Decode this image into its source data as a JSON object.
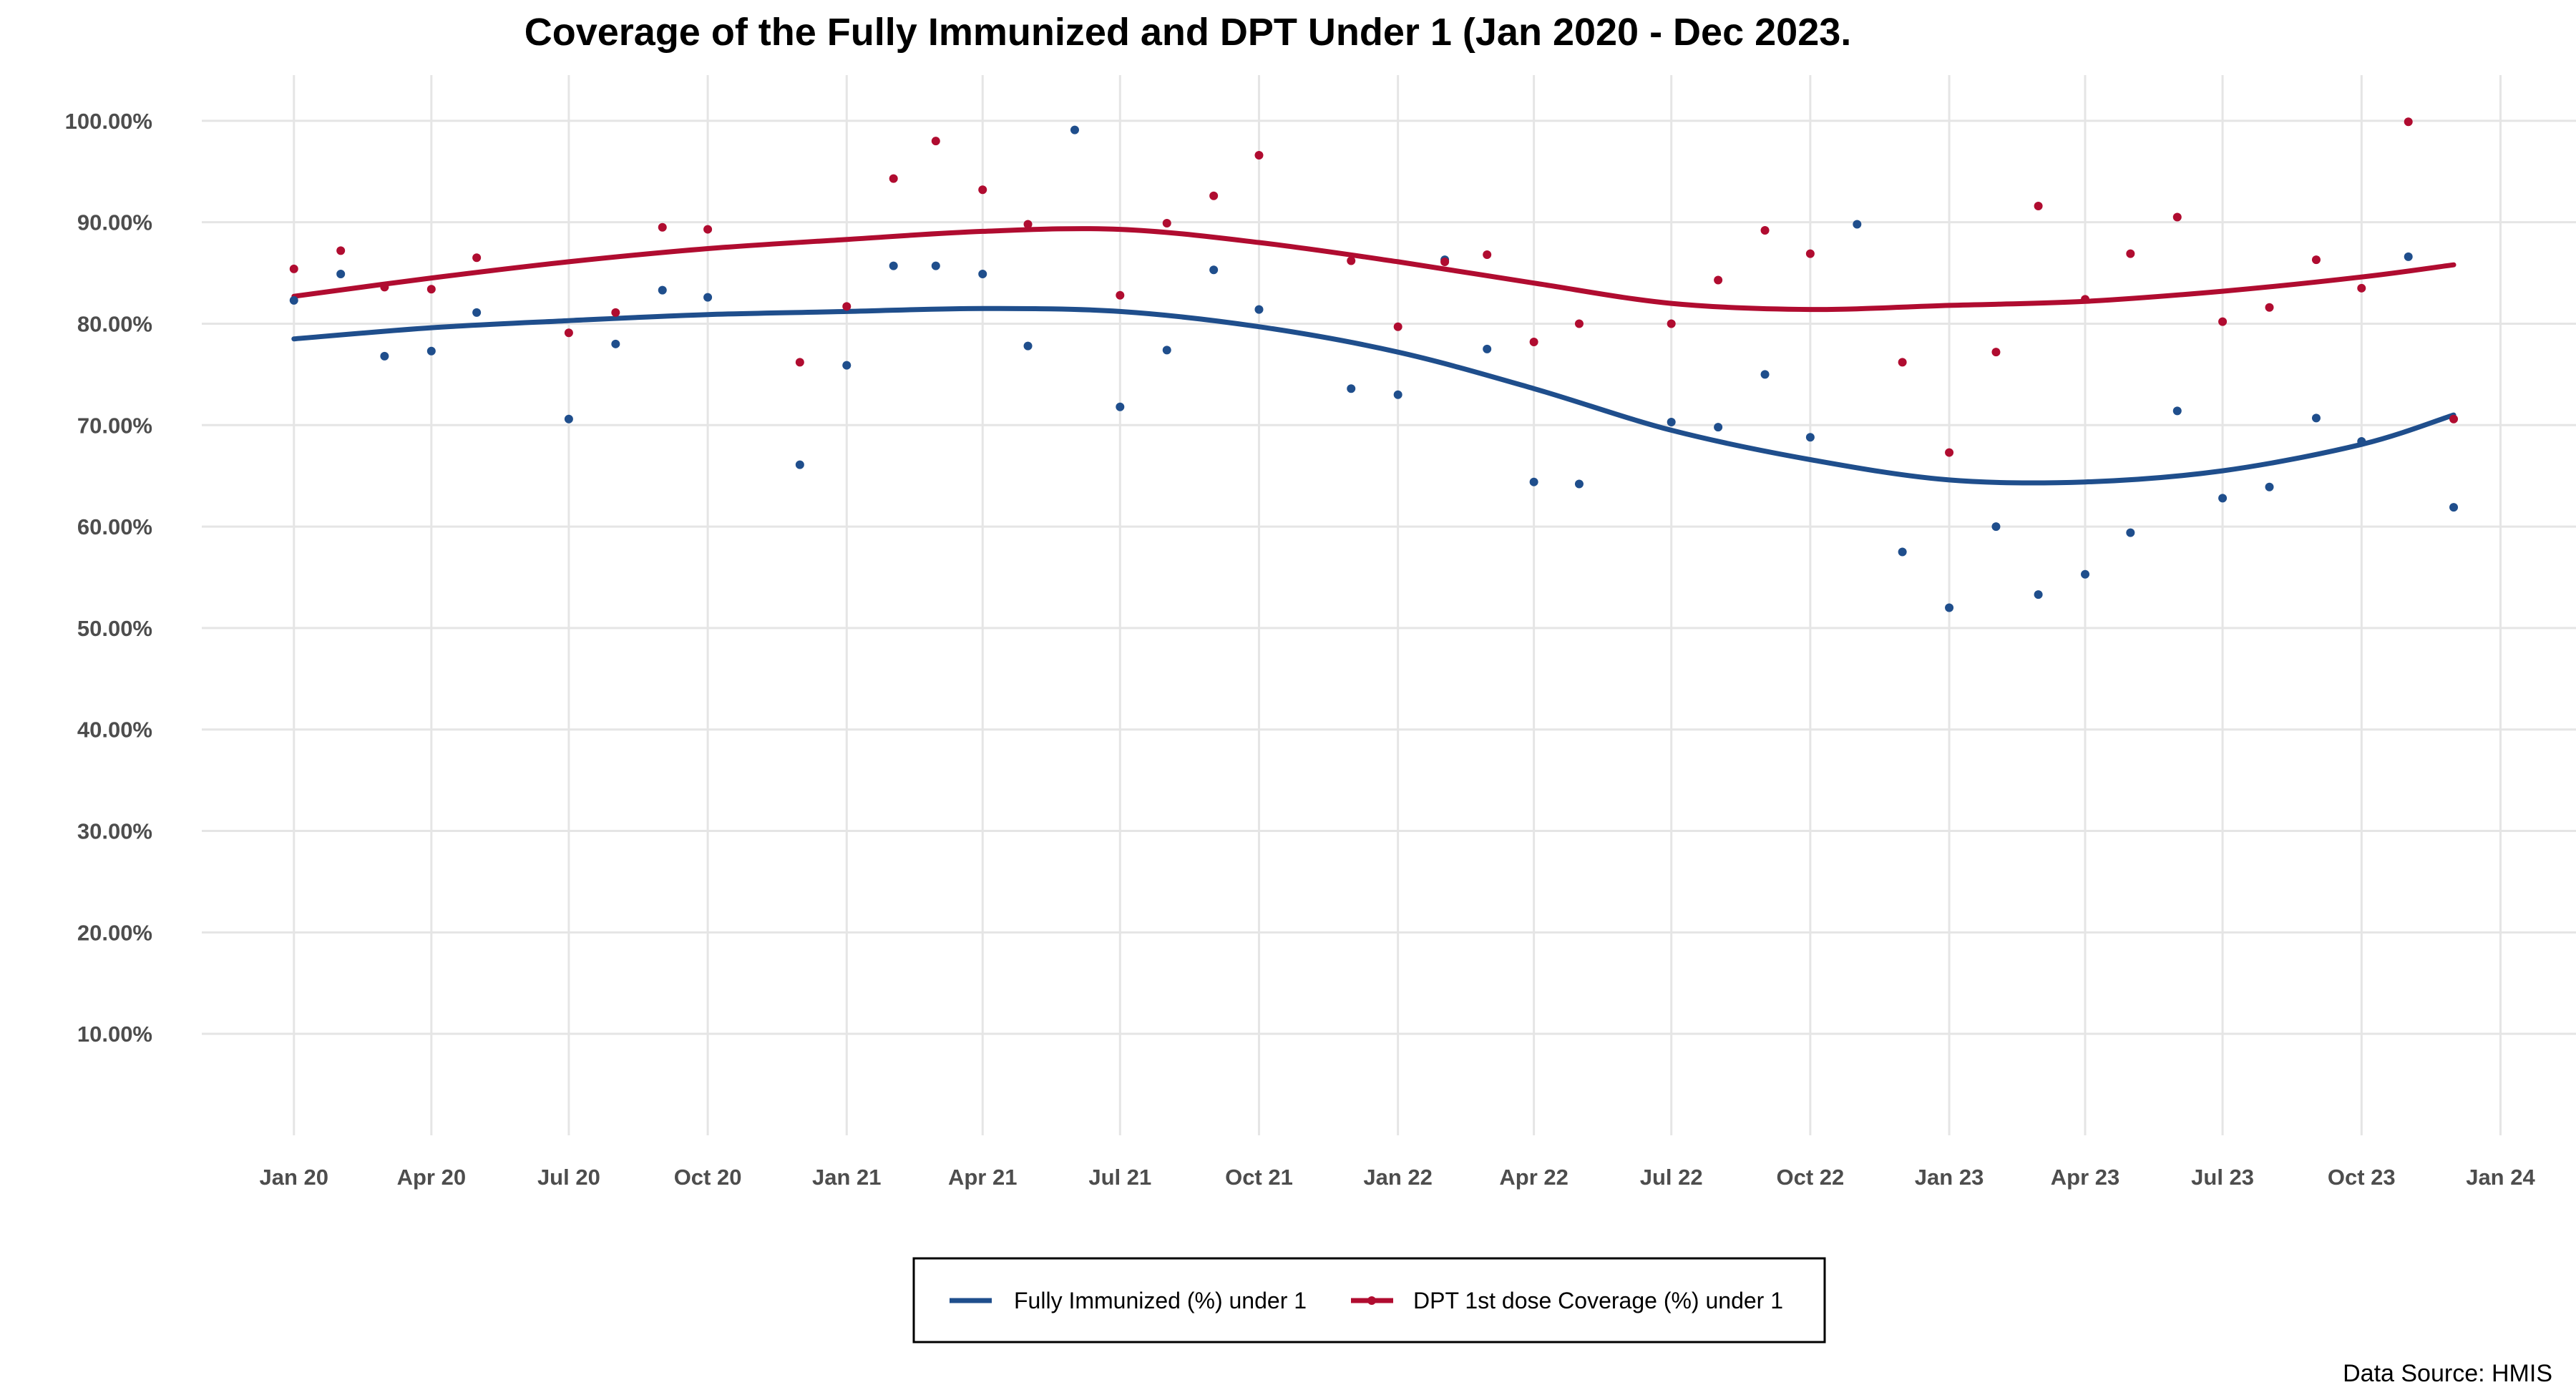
{
  "chart_data": {
    "type": "scatter",
    "title": "Coverage of the Fully Immunized and DPT Under 1 (Jan 2020 - Dec 2023.",
    "caption": "Data Source: HMIS",
    "xlabel": "",
    "ylabel": "",
    "x_range": [
      "2019-11-01",
      "2024-02-20"
    ],
    "ylim": [
      0,
      104.5
    ],
    "y_ticks": [
      10,
      20,
      30,
      40,
      50,
      60,
      70,
      80,
      90,
      100
    ],
    "y_tick_labels": [
      "10.00%",
      "20.00%",
      "30.00%",
      "40.00%",
      "50.00%",
      "60.00%",
      "70.00%",
      "80.00%",
      "90.00%",
      "100.00%"
    ],
    "x_ticks": [
      "2020-01-01",
      "2020-04-01",
      "2020-07-01",
      "2020-10-01",
      "2021-01-01",
      "2021-04-01",
      "2021-07-01",
      "2021-10-01",
      "2022-01-01",
      "2022-04-01",
      "2022-07-01",
      "2022-10-01",
      "2023-01-01",
      "2023-04-01",
      "2023-07-01",
      "2023-10-01",
      "2024-01-01"
    ],
    "x_tick_labels": [
      "Jan 20",
      "Apr 20",
      "Jul 20",
      "Oct 20",
      "Jan 21",
      "Apr 21",
      "Jul 21",
      "Oct 21",
      "Jan 22",
      "Apr 22",
      "Jul 22",
      "Oct 22",
      "Jan 23",
      "Apr 23",
      "Jul 23",
      "Oct 23",
      "Jan 24"
    ],
    "grid": true,
    "legend_position": "bottom",
    "dates": [
      "2020-01-01",
      "2020-02-01",
      "2020-03-01",
      "2020-04-01",
      "2020-05-01",
      "2020-06-01",
      "2020-07-01",
      "2020-08-01",
      "2020-09-01",
      "2020-10-01",
      "2020-11-01",
      "2020-12-01",
      "2021-01-01",
      "2021-02-01",
      "2021-03-01",
      "2021-04-01",
      "2021-05-01",
      "2021-06-01",
      "2021-07-01",
      "2021-08-01",
      "2021-09-01",
      "2021-10-01",
      "2021-11-01",
      "2021-12-01",
      "2022-01-01",
      "2022-02-01",
      "2022-03-01",
      "2022-04-01",
      "2022-05-01",
      "2022-06-01",
      "2022-07-01",
      "2022-08-01",
      "2022-09-01",
      "2022-10-01",
      "2022-11-01",
      "2022-12-01",
      "2023-01-01",
      "2023-02-01",
      "2023-03-01",
      "2023-04-01",
      "2023-05-01",
      "2023-06-01",
      "2023-07-01",
      "2023-08-01",
      "2023-09-01",
      "2023-10-01",
      "2023-11-01",
      "2023-12-01"
    ],
    "series": [
      {
        "name": "Fully Immunized (%) under 1",
        "color": "#1F4E8C",
        "values": [
          82.3,
          84.9,
          76.8,
          77.3,
          81.1,
          null,
          70.6,
          78.0,
          83.3,
          82.6,
          null,
          66.1,
          75.9,
          85.7,
          85.7,
          84.9,
          77.8,
          99.1,
          71.8,
          77.4,
          85.3,
          81.4,
          null,
          73.6,
          73.0,
          86.3,
          77.5,
          64.4,
          64.2,
          null,
          70.3,
          69.8,
          75.0,
          68.8,
          89.8,
          57.5,
          52.0,
          60.0,
          53.3,
          55.3,
          59.4,
          71.4,
          62.8,
          63.9,
          70.7,
          68.4,
          86.6,
          61.9
        ],
        "trend": [
          [
            "2020-01-01",
            78.5
          ],
          [
            "2020-04-01",
            79.6
          ],
          [
            "2020-07-01",
            80.3
          ],
          [
            "2020-10-01",
            80.9
          ],
          [
            "2021-01-01",
            81.2
          ],
          [
            "2021-04-01",
            81.5
          ],
          [
            "2021-07-01",
            81.2
          ],
          [
            "2021-10-01",
            79.7
          ],
          [
            "2022-01-01",
            77.2
          ],
          [
            "2022-04-01",
            73.6
          ],
          [
            "2022-07-01",
            69.5
          ],
          [
            "2022-10-01",
            66.6
          ],
          [
            "2023-01-01",
            64.6
          ],
          [
            "2023-04-01",
            64.4
          ],
          [
            "2023-07-01",
            65.5
          ],
          [
            "2023-10-01",
            68.1
          ],
          [
            "2023-12-01",
            71.0
          ]
        ]
      },
      {
        "name": "DPT 1st dose Coverage (%) under 1",
        "color": "#B00C30",
        "values": [
          85.4,
          87.2,
          83.6,
          83.4,
          86.5,
          null,
          79.1,
          81.1,
          89.5,
          89.3,
          null,
          76.2,
          81.7,
          94.3,
          98.0,
          93.2,
          89.8,
          null,
          82.8,
          89.9,
          92.6,
          96.6,
          null,
          86.2,
          79.7,
          86.1,
          86.8,
          78.2,
          80.0,
          null,
          80.0,
          84.3,
          89.2,
          86.9,
          null,
          76.2,
          67.3,
          77.2,
          91.6,
          82.4,
          86.9,
          90.5,
          80.2,
          81.6,
          86.3,
          83.5,
          99.9,
          70.6
        ],
        "trend": [
          [
            "2020-01-01",
            82.7
          ],
          [
            "2020-04-01",
            84.5
          ],
          [
            "2020-07-01",
            86.1
          ],
          [
            "2020-10-01",
            87.4
          ],
          [
            "2021-01-01",
            88.3
          ],
          [
            "2021-04-01",
            89.1
          ],
          [
            "2021-07-01",
            89.3
          ],
          [
            "2021-10-01",
            88.0
          ],
          [
            "2022-01-01",
            86.1
          ],
          [
            "2022-04-01",
            84.0
          ],
          [
            "2022-07-01",
            82.0
          ],
          [
            "2022-10-01",
            81.4
          ],
          [
            "2023-01-01",
            81.8
          ],
          [
            "2023-04-01",
            82.2
          ],
          [
            "2023-07-01",
            83.2
          ],
          [
            "2023-10-01",
            84.6
          ],
          [
            "2023-12-01",
            85.8
          ]
        ]
      }
    ]
  }
}
